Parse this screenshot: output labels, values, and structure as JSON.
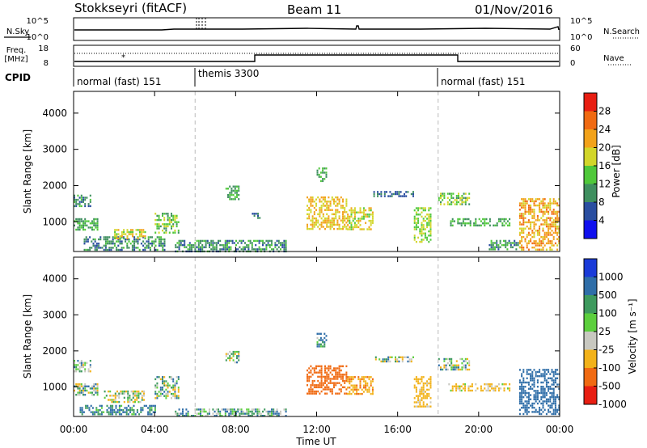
{
  "header": {
    "station": "Stokkseyri (fitACF)",
    "beam": "Beam 11",
    "date": "01/Nov/2016"
  },
  "panels": {
    "nsky_label": "N.Sky",
    "nsky_ticks": [
      "10^5",
      "10^0"
    ],
    "nsearch_label": "N.Search",
    "nsearch_ticks": [
      "10^5",
      "10^0"
    ],
    "freq_label": "Freq.",
    "freq_unit": "[MHz]",
    "freq_ticks": [
      "18",
      "8"
    ],
    "nave_label": "Nave",
    "nave_ticks": [
      "60",
      "0"
    ],
    "cpid_label": "CPID",
    "cpid_segments": [
      {
        "label": "normal (fast) 151",
        "start_h": 0,
        "end_h": 6
      },
      {
        "label": "themis 3300",
        "start_h": 6,
        "end_h": 18
      },
      {
        "label": "normal (fast) 151",
        "start_h": 18,
        "end_h": 24
      }
    ]
  },
  "chart_data": [
    {
      "type": "heatmap",
      "title": "",
      "xlabel": "Time UT",
      "ylabel": "Slant Range [km]",
      "xlim_hours": [
        0,
        24
      ],
      "ylim_km": [
        180,
        4600
      ],
      "y_ticks": [
        "1000",
        "2000",
        "3000",
        "4000"
      ],
      "colorbar_label": "Power [dB]",
      "colorbar_ticks": [
        "4",
        "8",
        "12",
        "16",
        "20",
        "24",
        "28"
      ],
      "colorbar_colors": [
        "#1010ee",
        "#2a4ea0",
        "#3f8f5f",
        "#4fc83a",
        "#d2d62a",
        "#f2a21a",
        "#f06a12",
        "#e81e12"
      ],
      "regions": [
        {
          "t0": 0.0,
          "t1": 0.8,
          "r0": 1450,
          "r1": 1750,
          "value": 10
        },
        {
          "t0": 0.0,
          "t1": 1.2,
          "r0": 800,
          "r1": 1100,
          "value": 12
        },
        {
          "t0": 0.5,
          "t1": 4.5,
          "r0": 250,
          "r1": 600,
          "value": 10
        },
        {
          "t0": 2.0,
          "t1": 3.5,
          "r0": 550,
          "r1": 800,
          "value": 18
        },
        {
          "t0": 4.0,
          "t1": 5.2,
          "r0": 700,
          "r1": 1250,
          "value": 14
        },
        {
          "t0": 5.0,
          "t1": 10.5,
          "r0": 200,
          "r1": 500,
          "value": 10
        },
        {
          "t0": 7.5,
          "t1": 8.2,
          "r0": 1650,
          "r1": 2000,
          "value": 12
        },
        {
          "t0": 8.8,
          "t1": 9.2,
          "r0": 1100,
          "r1": 1250,
          "value": 8
        },
        {
          "t0": 11.5,
          "t1": 13.5,
          "r0": 800,
          "r1": 1700,
          "value": 20
        },
        {
          "t0": 12.0,
          "t1": 12.5,
          "r0": 2100,
          "r1": 2500,
          "value": 12
        },
        {
          "t0": 13.5,
          "t1": 14.8,
          "r0": 800,
          "r1": 1400,
          "value": 18
        },
        {
          "t0": 14.8,
          "t1": 16.8,
          "r0": 1700,
          "r1": 1850,
          "value": 8
        },
        {
          "t0": 16.8,
          "t1": 17.6,
          "r0": 450,
          "r1": 1400,
          "value": 16
        },
        {
          "t0": 18.0,
          "t1": 19.5,
          "r0": 1500,
          "r1": 1800,
          "value": 14
        },
        {
          "t0": 18.5,
          "t1": 21.5,
          "r0": 900,
          "r1": 1100,
          "value": 12
        },
        {
          "t0": 20.5,
          "t1": 22.0,
          "r0": 250,
          "r1": 500,
          "value": 10
        },
        {
          "t0": 22.0,
          "t1": 24.0,
          "r0": 250,
          "r1": 1650,
          "value": 22
        }
      ]
    },
    {
      "type": "heatmap",
      "title": "",
      "xlabel": "Time UT",
      "ylabel": "Slant Range [km]",
      "xlim_hours": [
        0,
        24
      ],
      "ylim_km": [
        180,
        4600
      ],
      "y_ticks": [
        "1000",
        "2000",
        "3000",
        "4000"
      ],
      "colorbar_label": "Velocity [m s⁻¹]",
      "colorbar_ticks": [
        "1000",
        "500",
        "100",
        "25",
        "-25",
        "-100",
        "-500",
        "-1000"
      ],
      "colorbar_colors": [
        "#1a3bd8",
        "#2f6ea8",
        "#3e9a5e",
        "#5ccf3d",
        "#c8c8c0",
        "#f2b21a",
        "#f06a12",
        "#e81e12"
      ],
      "regions": [
        {
          "t0": 0.0,
          "t1": 0.8,
          "r0": 1450,
          "r1": 1750,
          "value": 0
        },
        {
          "t0": 0.0,
          "t1": 1.2,
          "r0": 800,
          "r1": 1100,
          "value": 0
        },
        {
          "t0": 0.3,
          "t1": 4.0,
          "r0": 250,
          "r1": 500,
          "value": 150
        },
        {
          "t0": 1.5,
          "t1": 3.5,
          "r0": 600,
          "r1": 900,
          "value": -50
        },
        {
          "t0": 4.0,
          "t1": 5.2,
          "r0": 700,
          "r1": 1300,
          "value": 0
        },
        {
          "t0": 5.0,
          "t1": 10.5,
          "r0": 200,
          "r1": 400,
          "value": 60
        },
        {
          "t0": 7.5,
          "t1": 8.2,
          "r0": 1650,
          "r1": 2000,
          "value": 0
        },
        {
          "t0": 11.5,
          "t1": 13.5,
          "r0": 800,
          "r1": 1600,
          "value": -800
        },
        {
          "t0": 12.0,
          "t1": 12.5,
          "r0": 2100,
          "r1": 2500,
          "value": 120
        },
        {
          "t0": 13.5,
          "t1": 14.8,
          "r0": 800,
          "r1": 1300,
          "value": -450
        },
        {
          "t0": 14.8,
          "t1": 16.8,
          "r0": 1700,
          "r1": 1850,
          "value": 0
        },
        {
          "t0": 16.8,
          "t1": 17.6,
          "r0": 450,
          "r1": 1300,
          "value": -200
        },
        {
          "t0": 18.0,
          "t1": 19.5,
          "r0": 1500,
          "r1": 1800,
          "value": 0
        },
        {
          "t0": 18.5,
          "t1": 21.5,
          "r0": 900,
          "r1": 1100,
          "value": -150
        },
        {
          "t0": 22.0,
          "t1": 24.0,
          "r0": 250,
          "r1": 1500,
          "value": 300
        }
      ]
    }
  ],
  "x_axis": {
    "ticks": [
      "00:00",
      "04:00",
      "08:00",
      "12:00",
      "16:00",
      "20:00",
      "00:00"
    ],
    "tick_hours": [
      0,
      4,
      8,
      12,
      16,
      20,
      24
    ],
    "label": "Time UT"
  },
  "mode_change_hours": [
    6,
    18
  ]
}
